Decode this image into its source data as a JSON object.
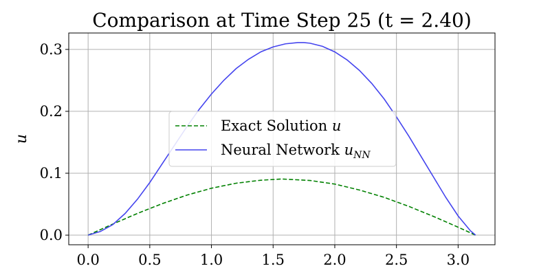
{
  "chart_data": {
    "type": "line",
    "title": "Comparison at Time Step 25 (t = 2.40)",
    "xlabel": "",
    "ylabel": "u",
    "xlim": [
      -0.157,
      3.299
    ],
    "ylim": [
      -0.0155,
      0.3265
    ],
    "xticks": [
      0.0,
      0.5,
      1.0,
      1.5,
      2.0,
      2.5,
      3.0
    ],
    "xtick_labels": [
      "0.0",
      "0.5",
      "1.0",
      "1.5",
      "2.0",
      "2.5",
      "3.0"
    ],
    "yticks": [
      0.0,
      0.1,
      0.2,
      0.3
    ],
    "ytick_labels": [
      "0.0",
      "0.1",
      "0.2",
      "0.3"
    ],
    "grid": true,
    "legend_position": "center",
    "series": [
      {
        "name": "Exact Solution",
        "name_math": "u",
        "color": "#008000",
        "style": "dashed",
        "x": [
          0.0,
          0.2,
          0.4,
          0.6,
          0.8,
          1.0,
          1.2,
          1.4,
          1.571,
          1.8,
          2.0,
          2.2,
          2.4,
          2.6,
          2.8,
          3.0,
          3.1416
        ],
        "y": [
          0.0,
          0.0179,
          0.0351,
          0.0508,
          0.0646,
          0.0758,
          0.0839,
          0.0887,
          0.0907,
          0.0883,
          0.0825,
          0.0729,
          0.0611,
          0.0465,
          0.0303,
          0.0128,
          0.0
        ]
      },
      {
        "name": "Neural Network",
        "name_math": "u",
        "name_math_sub": "NN",
        "color": "#4444ee",
        "style": "solid",
        "x": [
          0.0,
          0.1,
          0.2,
          0.3,
          0.4,
          0.5,
          0.6,
          0.7,
          0.8,
          0.9,
          1.0,
          1.1,
          1.2,
          1.3,
          1.4,
          1.5,
          1.6,
          1.7,
          1.75,
          1.8,
          1.9,
          2.0,
          2.1,
          2.2,
          2.3,
          2.4,
          2.5,
          2.6,
          2.7,
          2.8,
          2.9,
          3.0,
          3.1,
          3.1416
        ],
        "y": [
          0.0,
          0.006,
          0.017,
          0.035,
          0.058,
          0.085,
          0.115,
          0.145,
          0.175,
          0.203,
          0.228,
          0.25,
          0.269,
          0.284,
          0.296,
          0.304,
          0.309,
          0.311,
          0.311,
          0.31,
          0.305,
          0.296,
          0.283,
          0.266,
          0.245,
          0.22,
          0.191,
          0.16,
          0.127,
          0.094,
          0.061,
          0.031,
          0.007,
          0.0
        ]
      }
    ]
  }
}
